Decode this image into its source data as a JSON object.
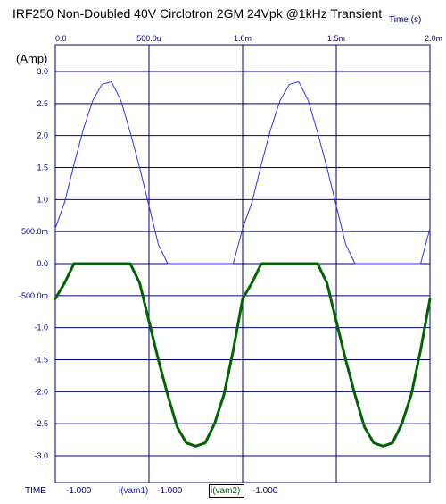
{
  "chart_data": {
    "type": "line",
    "title": "IRF250 Non-Doubled 40V Circlotron 2GM 24Vpk @1kHz Transient",
    "xlabel": "Time  (s)",
    "ylabel": "(Amp)",
    "xlim": [
      0,
      0.002
    ],
    "ylim": [
      -3.0,
      3.0
    ],
    "x_ticks": [
      0,
      0.0005,
      0.001,
      0.0015,
      0.002
    ],
    "x_tick_labels": [
      "0.0",
      "500.0u",
      "1.0m",
      "1.5m",
      "2.0m"
    ],
    "y_ticks": [
      3.0,
      2.5,
      2.0,
      1.5,
      1.0,
      0.5,
      0.0,
      -0.5,
      -1.0,
      -1.5,
      -2.0,
      -2.5,
      -3.0
    ],
    "y_tick_labels": [
      "3.0",
      "2.5",
      "2.0",
      "1.5",
      "1.0",
      "500.0m",
      "0.0",
      "-500.0m",
      "-1.0",
      "-1.5",
      "-2.0",
      "-2.5",
      "-3.0"
    ],
    "grid": true,
    "series": [
      {
        "name": "i(vam1)",
        "color": "#3333ff",
        "x": [
          0,
          5e-05,
          0.0001,
          0.00015,
          0.0002,
          0.00025,
          0.0003,
          0.00035,
          0.0004,
          0.00045,
          0.0005,
          0.00055,
          0.0006,
          0.00065,
          0.0007,
          0.00075,
          0.0008,
          0.00085,
          0.0009,
          0.00095,
          0.001,
          0.00105,
          0.0011,
          0.00115,
          0.0012,
          0.00125,
          0.0013,
          0.00135,
          0.0014,
          0.00145,
          0.0015,
          0.00155,
          0.0016,
          0.00165,
          0.0017,
          0.00175,
          0.0018,
          0.00185,
          0.0019,
          0.00195,
          0.002
        ],
        "values": [
          0.55,
          0.96,
          1.55,
          2.1,
          2.55,
          2.8,
          2.84,
          2.55,
          2.05,
          1.5,
          0.9,
          0.3,
          0.0,
          0.0,
          0.0,
          0.0,
          0.0,
          0.0,
          0.0,
          0.0,
          0.55,
          0.96,
          1.55,
          2.1,
          2.55,
          2.8,
          2.84,
          2.55,
          2.05,
          1.5,
          0.9,
          0.3,
          0.0,
          0.0,
          0.0,
          0.0,
          0.0,
          0.0,
          0.0,
          0.0,
          0.55
        ]
      },
      {
        "name": "i(vam2)",
        "color": "#006400",
        "x": [
          0,
          5e-05,
          0.0001,
          0.00015,
          0.0002,
          0.00025,
          0.0003,
          0.00035,
          0.0004,
          0.00045,
          0.0005,
          0.00055,
          0.0006,
          0.00065,
          0.0007,
          0.00075,
          0.0008,
          0.00085,
          0.0009,
          0.00095,
          0.001,
          0.00105,
          0.0011,
          0.00115,
          0.0012,
          0.00125,
          0.0013,
          0.00135,
          0.0014,
          0.00145,
          0.0015,
          0.00155,
          0.0016,
          0.00165,
          0.0017,
          0.00175,
          0.0018,
          0.00185,
          0.0019,
          0.00195,
          0.002
        ],
        "values": [
          -0.55,
          -0.3,
          0.0,
          0.0,
          0.0,
          0.0,
          0.0,
          0.0,
          0.0,
          -0.3,
          -0.9,
          -1.5,
          -2.05,
          -2.55,
          -2.8,
          -2.85,
          -2.8,
          -2.5,
          -2.05,
          -1.35,
          -0.55,
          -0.3,
          0.0,
          0.0,
          0.0,
          0.0,
          0.0,
          0.0,
          0.0,
          -0.3,
          -0.9,
          -1.5,
          -2.05,
          -2.55,
          -2.8,
          -2.85,
          -2.8,
          -2.5,
          -2.05,
          -1.35,
          -0.55
        ]
      }
    ]
  },
  "status_bar": {
    "time_label": "TIME",
    "time_value": "-1.000",
    "series1_label": "i(vam1)",
    "series1_value": "-1.000",
    "series2_label": "i(vam2)",
    "series2_value": "-1.000"
  }
}
